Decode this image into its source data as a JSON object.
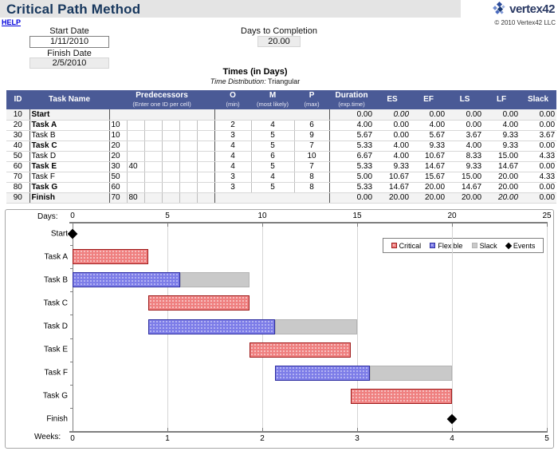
{
  "header": {
    "title": "Critical Path Method",
    "help": "HELP",
    "logo_text": "vertex42",
    "copyright": "© 2010 Vertex42 LLC"
  },
  "controls": {
    "start_date_label": "Start Date",
    "start_date": "1/11/2010",
    "finish_date_label": "Finish Date",
    "finish_date": "2/5/2010",
    "days_to_completion_label": "Days to Completion",
    "days_to_completion": "20.00"
  },
  "times": {
    "title": "Times (in Days)",
    "distribution_label": "Time Distribution:",
    "distribution_value": "Triangular"
  },
  "table": {
    "headers": {
      "id": "ID",
      "task": "Task Name",
      "pred": "Predecessors",
      "pred_sub": "(Enter one ID per cell)",
      "o": "O",
      "o_sub": "(min)",
      "m": "M",
      "m_sub": "(most likely)",
      "p": "P",
      "p_sub": "(max)",
      "dur": "Duration",
      "dur_sub": "(exp.time)",
      "es": "ES",
      "ef": "EF",
      "ls": "LS",
      "lf": "LF",
      "slack": "Slack"
    },
    "rows": [
      {
        "id": "10",
        "name": "Start",
        "bold": true,
        "preds": [],
        "o": "",
        "m": "",
        "p": "",
        "duration": "0.00",
        "es": "0.00",
        "ef": "0.00",
        "ls": "0.00",
        "lf": "0.00",
        "slack": "0.00",
        "es_italic": true,
        "merged_pred": true
      },
      {
        "id": "20",
        "name": "Task A",
        "bold": true,
        "preds": [
          "10"
        ],
        "o": "2",
        "m": "4",
        "p": "6",
        "duration": "4.00",
        "es": "0.00",
        "ef": "4.00",
        "ls": "0.00",
        "lf": "4.00",
        "slack": "0.00"
      },
      {
        "id": "30",
        "name": "Task B",
        "bold": false,
        "preds": [
          "10"
        ],
        "o": "3",
        "m": "5",
        "p": "9",
        "duration": "5.67",
        "es": "0.00",
        "ef": "5.67",
        "ls": "3.67",
        "lf": "9.33",
        "slack": "3.67"
      },
      {
        "id": "40",
        "name": "Task C",
        "bold": true,
        "preds": [
          "20"
        ],
        "o": "4",
        "m": "5",
        "p": "7",
        "duration": "5.33",
        "es": "4.00",
        "ef": "9.33",
        "ls": "4.00",
        "lf": "9.33",
        "slack": "0.00"
      },
      {
        "id": "50",
        "name": "Task D",
        "bold": false,
        "preds": [
          "20"
        ],
        "o": "4",
        "m": "6",
        "p": "10",
        "duration": "6.67",
        "es": "4.00",
        "ef": "10.67",
        "ls": "8.33",
        "lf": "15.00",
        "slack": "4.33"
      },
      {
        "id": "60",
        "name": "Task E",
        "bold": true,
        "preds": [
          "30",
          "40"
        ],
        "o": "4",
        "m": "5",
        "p": "7",
        "duration": "5.33",
        "es": "9.33",
        "ef": "14.67",
        "ls": "9.33",
        "lf": "14.67",
        "slack": "0.00"
      },
      {
        "id": "70",
        "name": "Task F",
        "bold": false,
        "preds": [
          "50"
        ],
        "o": "3",
        "m": "4",
        "p": "8",
        "duration": "5.00",
        "es": "10.67",
        "ef": "15.67",
        "ls": "15.00",
        "lf": "20.00",
        "slack": "4.33"
      },
      {
        "id": "80",
        "name": "Task G",
        "bold": true,
        "preds": [
          "60"
        ],
        "o": "3",
        "m": "5",
        "p": "8",
        "duration": "5.33",
        "es": "14.67",
        "ef": "20.00",
        "ls": "14.67",
        "lf": "20.00",
        "slack": "0.00"
      },
      {
        "id": "90",
        "name": "Finish",
        "bold": true,
        "preds": [
          "70",
          "80"
        ],
        "o": "",
        "m": "",
        "p": "",
        "duration": "0.00",
        "es": "20.00",
        "ef": "20.00",
        "ls": "20.00",
        "lf": "20.00",
        "slack": "0.00",
        "lf_italic": true
      }
    ]
  },
  "chart_data": {
    "type": "bar",
    "subtype": "gantt",
    "top_axis_label": "Days:",
    "bottom_axis_label": "Weeks:",
    "days_ticks": [
      0,
      5,
      10,
      15,
      20,
      25
    ],
    "weeks_ticks": [
      0,
      1,
      2,
      3,
      4,
      5
    ],
    "xlim_days": [
      0,
      25
    ],
    "colors": {
      "critical": "#E05252",
      "flexible": "#5A5AE0",
      "slack": "#C0C0C0",
      "events": "#000000",
      "header_blue": "#4A5A96",
      "title_navy": "#17375D"
    },
    "legend": [
      {
        "label": "Critical",
        "kind": "critical"
      },
      {
        "label": "Flexible",
        "kind": "flexible"
      },
      {
        "label": "Slack",
        "kind": "slack"
      },
      {
        "label": "Events",
        "kind": "events"
      }
    ],
    "rows": [
      {
        "label": "Start",
        "event": 0
      },
      {
        "label": "Task A",
        "segments": [
          {
            "kind": "critical",
            "start": 0,
            "end": 4
          }
        ]
      },
      {
        "label": "Task B",
        "segments": [
          {
            "kind": "flexible",
            "start": 0,
            "end": 5.67
          },
          {
            "kind": "slack",
            "start": 5.67,
            "end": 9.33
          }
        ]
      },
      {
        "label": "Task C",
        "segments": [
          {
            "kind": "critical",
            "start": 4,
            "end": 9.33
          }
        ]
      },
      {
        "label": "Task D",
        "segments": [
          {
            "kind": "flexible",
            "start": 4,
            "end": 10.67
          },
          {
            "kind": "slack",
            "start": 10.67,
            "end": 15
          }
        ]
      },
      {
        "label": "Task E",
        "segments": [
          {
            "kind": "critical",
            "start": 9.33,
            "end": 14.67
          }
        ]
      },
      {
        "label": "Task F",
        "segments": [
          {
            "kind": "flexible",
            "start": 10.67,
            "end": 15.67
          },
          {
            "kind": "slack",
            "start": 15.67,
            "end": 20
          }
        ]
      },
      {
        "label": "Task G",
        "segments": [
          {
            "kind": "critical",
            "start": 14.67,
            "end": 20
          }
        ]
      },
      {
        "label": "Finish",
        "event": 20
      }
    ]
  }
}
